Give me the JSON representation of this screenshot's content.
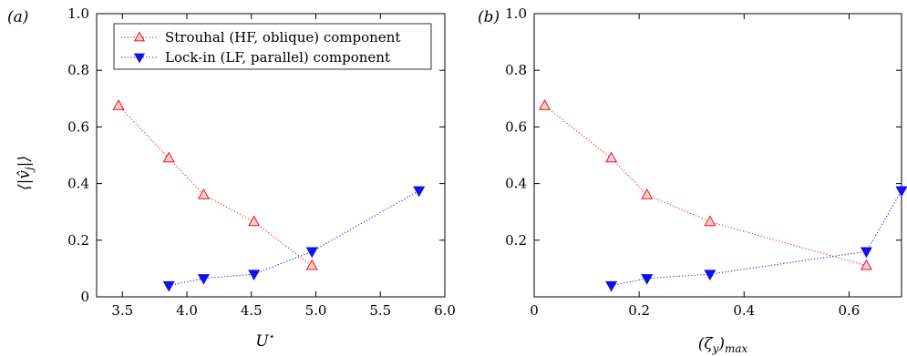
{
  "chart_data": [
    {
      "type": "scatter",
      "panel_label": "(a)",
      "xlabel": "U⋆",
      "ylabel": "⟨|v̂j|⟩",
      "xlim": [
        3.3,
        6.0
      ],
      "ylim": [
        0,
        1.0
      ],
      "xticks": [
        "3.5",
        "4.0",
        "4.5",
        "5.0",
        "5.5",
        "6.0"
      ],
      "xtick_values": [
        3.5,
        4.0,
        4.5,
        5.0,
        5.5,
        6.0
      ],
      "yticks": [
        "0",
        "0.2",
        "0.4",
        "0.6",
        "0.8",
        "1.0"
      ],
      "ytick_values": [
        0,
        0.2,
        0.4,
        0.6,
        0.8,
        1.0
      ],
      "legend": "top-right",
      "series": [
        {
          "name": "Strouhal (HF, oblique) component",
          "marker": "triangle-up-open",
          "color": "#e8141b",
          "x": [
            3.47,
            3.86,
            4.13,
            4.52,
            4.97
          ],
          "y": [
            0.675,
            0.49,
            0.36,
            0.265,
            0.11
          ]
        },
        {
          "name": "Lock-in (LF, parallel) component",
          "marker": "triangle-down-filled",
          "color": "#1010ee",
          "x": [
            3.86,
            4.13,
            4.52,
            4.97,
            5.8
          ],
          "y": [
            0.04,
            0.065,
            0.08,
            0.16,
            0.375
          ]
        }
      ]
    },
    {
      "type": "scatter",
      "panel_label": "(b)",
      "xlabel": "(ζy)max",
      "ylabel": "",
      "xlim": [
        0,
        0.7
      ],
      "ylim": [
        0,
        1.0
      ],
      "xticks": [
        "0",
        "0.2",
        "0.4",
        "0.6"
      ],
      "xtick_values": [
        0,
        0.2,
        0.4,
        0.6
      ],
      "yticks": [
        "0.2",
        "0.4",
        "0.6",
        "0.8",
        "1.0"
      ],
      "ytick_values": [
        0.2,
        0.4,
        0.6,
        0.8,
        1.0
      ],
      "series": [
        {
          "marker": "triangle-up-open",
          "color": "#e8141b",
          "x": [
            0.02,
            0.147,
            0.215,
            0.335,
            0.633
          ],
          "y": [
            0.675,
            0.49,
            0.36,
            0.265,
            0.11
          ]
        },
        {
          "marker": "triangle-down-filled",
          "color": "#1010ee",
          "x": [
            0.147,
            0.215,
            0.335,
            0.633,
            0.7
          ],
          "y": [
            0.04,
            0.065,
            0.08,
            0.16,
            0.375
          ]
        }
      ]
    }
  ]
}
